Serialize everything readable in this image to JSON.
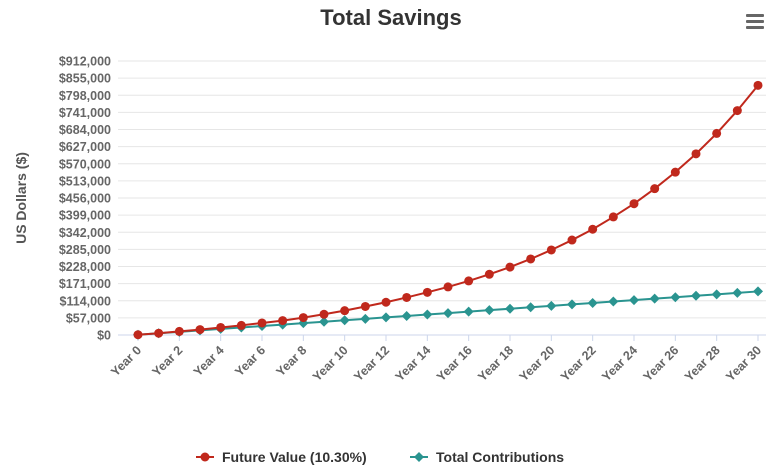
{
  "chart_data": {
    "type": "line",
    "title": "Total Savings",
    "xlabel": "",
    "ylabel": "US Dollars ($)",
    "categories": [
      "Year 0",
      "Year 1",
      "Year 2",
      "Year 3",
      "Year 4",
      "Year 5",
      "Year 6",
      "Year 7",
      "Year 8",
      "Year 9",
      "Year 10",
      "Year 11",
      "Year 12",
      "Year 13",
      "Year 14",
      "Year 15",
      "Year 16",
      "Year 17",
      "Year 18",
      "Year 19",
      "Year 20",
      "Year 21",
      "Year 22",
      "Year 23",
      "Year 24",
      "Year 25",
      "Year 26",
      "Year 27",
      "Year 28",
      "Year 29",
      "Year 30"
    ],
    "x_tick_labels": [
      "Year 0",
      "Year 2",
      "Year 4",
      "Year 6",
      "Year 8",
      "Year 10",
      "Year 12",
      "Year 14",
      "Year 16",
      "Year 18",
      "Year 20",
      "Year 22",
      "Year 24",
      "Year 26",
      "Year 28",
      "Year 30"
    ],
    "y_tick_labels": [
      "$0",
      "$57,000",
      "$114,000",
      "$171,000",
      "$228,000",
      "$285,000",
      "$342,000",
      "$399,000",
      "$456,000",
      "$513,000",
      "$570,000",
      "$627,000",
      "$684,000",
      "$741,000",
      "$798,000",
      "$855,000",
      "$912,000"
    ],
    "ylim": [
      0,
      912000
    ],
    "grid": true,
    "legend_position": "bottom-center",
    "series": [
      {
        "name": "Future Value (10.30%)",
        "color": "#c0281c",
        "marker": "circle",
        "values": [
          1000,
          6000,
          12000,
          18000,
          25000,
          32000,
          40000,
          48000,
          58000,
          69000,
          81000,
          95000,
          109000,
          125000,
          142000,
          160000,
          180000,
          202000,
          226000,
          253000,
          283000,
          316000,
          352000,
          393000,
          437000,
          487000,
          542000,
          603000,
          671000,
          747000,
          831000
        ]
      },
      {
        "name": "Total Contributions",
        "color": "#2a9490",
        "marker": "diamond",
        "values": [
          1000,
          5800,
          10600,
          15400,
          20200,
          25000,
          29800,
          34600,
          39400,
          44200,
          49000,
          53800,
          58600,
          63400,
          68200,
          73000,
          77800,
          82600,
          87400,
          92200,
          97000,
          101800,
          106600,
          111400,
          116200,
          121000,
          125800,
          130600,
          135400,
          140200,
          145000
        ]
      }
    ]
  },
  "menu": {
    "icon": "hamburger-menu-icon"
  }
}
